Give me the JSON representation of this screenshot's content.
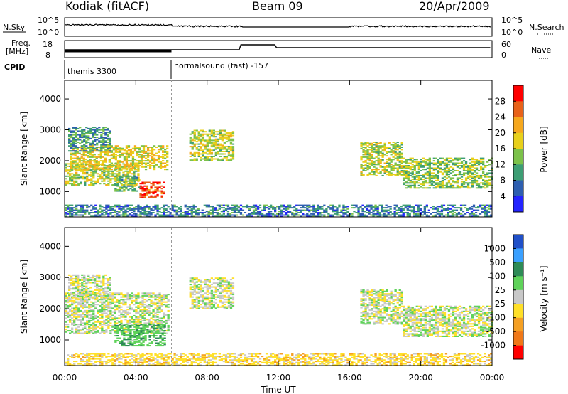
{
  "header": {
    "station": "Kodiak (fitACF)",
    "beam": "Beam 09",
    "date": "20/Apr/2009"
  },
  "top_panels": {
    "nsky_label": "N.Sky",
    "nsearch_label": "N.Search",
    "freq_label_1": "Freq.",
    "freq_label_2": "[MHz]",
    "nave_label": "Nave",
    "cpid_label": "CPID",
    "left_ticks_noise": [
      "10^5",
      "10^0"
    ],
    "right_ticks_noise": [
      "10^5",
      "10^0"
    ],
    "left_ticks_freq": [
      "18",
      "8"
    ],
    "right_ticks_freq": [
      "60",
      "0"
    ],
    "cpid_1": "themis 3300",
    "cpid_2": "normalsound (fast) -157"
  },
  "power_colorbar": {
    "title": "Power [dB]",
    "ticks": [
      "28",
      "24",
      "20",
      "16",
      "12",
      "8",
      "4"
    ],
    "colors": [
      "#ff0000",
      "#e8621a",
      "#f6a81e",
      "#e8d01a",
      "#7cc24a",
      "#3d9e74",
      "#2e5fb0",
      "#2424ff"
    ]
  },
  "velocity_colorbar": {
    "title": "Velocity [m s⁻¹]",
    "ticks": [
      "1000",
      "500",
      "100",
      "25",
      "-25",
      "-100",
      "-500",
      "-1000"
    ],
    "colors": [
      "#2050c8",
      "#3aa0ff",
      "#2e8b57",
      "#5fd35a",
      "#c8c8c8",
      "#ffe028",
      "#f5a023",
      "#f07818",
      "#ff0000"
    ]
  },
  "chart_data": [
    {
      "type": "heatmap",
      "name": "power",
      "ylabel": "Slant Range [km]",
      "xlabel": "Time UT",
      "yticks": [
        1000,
        2000,
        3000,
        4000
      ],
      "ylim": [
        180,
        4600
      ],
      "xticks": [
        "00:00",
        "04:00",
        "08:00",
        "12:00",
        "16:00",
        "20:00",
        "00:00"
      ],
      "xlim_hours": [
        0,
        24
      ],
      "regions": [
        {
          "t0": 0.0,
          "t1": 4.2,
          "r0": 1200,
          "r1": 1900,
          "level": 14
        },
        {
          "t0": 0.3,
          "t1": 5.8,
          "r0": 1700,
          "r1": 2500,
          "level": 16
        },
        {
          "t0": 0.2,
          "t1": 2.5,
          "r0": 2300,
          "r1": 3100,
          "level": 8
        },
        {
          "t0": 4.2,
          "t1": 5.6,
          "r0": 800,
          "r1": 1300,
          "level": 26
        },
        {
          "t0": 2.8,
          "t1": 4.2,
          "r0": 1000,
          "r1": 1500,
          "level": 10
        },
        {
          "t0": 7.0,
          "t1": 9.5,
          "r0": 2000,
          "r1": 3000,
          "level": 14
        },
        {
          "t0": 16.6,
          "t1": 19.0,
          "r0": 1500,
          "r1": 2600,
          "level": 14
        },
        {
          "t0": 19.0,
          "t1": 24.0,
          "r0": 1100,
          "r1": 2100,
          "level": 12
        },
        {
          "t0": 0.0,
          "t1": 24.0,
          "r0": 180,
          "r1": 550,
          "level": 6
        }
      ]
    },
    {
      "type": "heatmap",
      "name": "velocity",
      "ylabel": "Slant Range [km]",
      "xlabel": "Time UT",
      "yticks": [
        1000,
        2000,
        3000,
        4000
      ],
      "ylim": [
        180,
        4600
      ],
      "xticks": [
        "00:00",
        "04:00",
        "08:00",
        "12:00",
        "16:00",
        "20:00",
        "00:00"
      ],
      "xlim_hours": [
        0,
        24
      ],
      "regions": [
        {
          "t0": 0.0,
          "t1": 5.8,
          "r0": 1200,
          "r1": 2500,
          "value": 0
        },
        {
          "t0": 0.2,
          "t1": 2.5,
          "r0": 2300,
          "r1": 3100,
          "value": 0
        },
        {
          "t0": 2.8,
          "t1": 5.6,
          "r0": 800,
          "r1": 1500,
          "value": 80
        },
        {
          "t0": 7.0,
          "t1": 9.5,
          "r0": 2000,
          "r1": 3000,
          "value": 0
        },
        {
          "t0": 16.6,
          "t1": 19.0,
          "r0": 1500,
          "r1": 2600,
          "value": 0
        },
        {
          "t0": 19.0,
          "t1": 24.0,
          "r0": 1100,
          "r1": 2100,
          "value": 0
        },
        {
          "t0": 0.0,
          "t1": 24.0,
          "r0": 180,
          "r1": 550,
          "value": -60
        }
      ]
    }
  ]
}
